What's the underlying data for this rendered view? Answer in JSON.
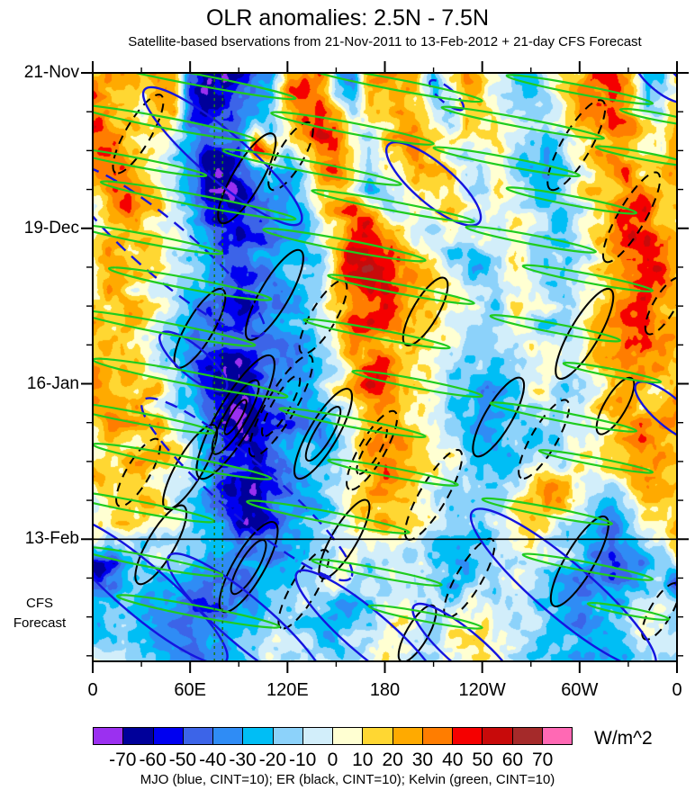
{
  "header": {
    "title": "OLR anomalies: 2.5N - 7.5N",
    "subtitle": "Satellite-based bservations from 21-Nov-2011 to 13-Feb-2012 + 21-day CFS Forecast"
  },
  "y_axis": {
    "major": [
      {
        "day": 0,
        "label": "21-Nov"
      },
      {
        "day": 28,
        "label": "19-Dec"
      },
      {
        "day": 56,
        "label": "16-Jan"
      },
      {
        "day": 84,
        "label": "13-Feb"
      }
    ],
    "minor_step_days": 7,
    "cfs_line1": "CFS",
    "cfs_line2": "Forecast"
  },
  "x_axis": {
    "major": [
      {
        "lon": 0,
        "label": "0"
      },
      {
        "lon": 60,
        "label": "60E"
      },
      {
        "lon": 120,
        "label": "120E"
      },
      {
        "lon": 180,
        "label": "180"
      },
      {
        "lon": 240,
        "label": "120W"
      },
      {
        "lon": 300,
        "label": "60W"
      },
      {
        "lon": 360,
        "label": "0"
      }
    ],
    "minor_step_deg": 30
  },
  "colorbar": {
    "unit": "W/m^2",
    "tick_labels": [
      "-70",
      "-60",
      "-50",
      "-40",
      "-30",
      "-20",
      "-10",
      "0",
      "10",
      "20",
      "30",
      "40",
      "50",
      "60",
      "70"
    ],
    "colors": [
      "#9B30F0",
      "#00009A",
      "#0000F0",
      "#3C64E8",
      "#2F8CF5",
      "#00BEF5",
      "#8CD2FA",
      "#D2EEFA",
      "#FFFFD2",
      "#FFD732",
      "#FFAA00",
      "#FF7D00",
      "#F50000",
      "#C80A0A",
      "#A52A2A",
      "#FF69B4"
    ]
  },
  "legend": {
    "text": "MJO (blue, CINT=10); ER (black, CINT=10); Kelvin (green, CINT=10)"
  },
  "chart_data": {
    "type": "heatmap",
    "title": "OLR anomalies: 2.5N - 7.5N",
    "time_start": "21-Nov-2011",
    "obs_end": "13-Feb-2012",
    "forecast_days": 21,
    "lon_range": [
      0,
      360
    ],
    "day_range": [
      0,
      106
    ],
    "levels_min": -70,
    "levels_step": 10,
    "value_codes": {
      "a": -75,
      "b": -65,
      "c": -55,
      "d": -45,
      "e": -35,
      "f": -25,
      "g": -15,
      "h": -5,
      "i": 5,
      "j": 15,
      "k": 25,
      "l": 35,
      "m": 45,
      "n": 55,
      "o": 65,
      "p": 75
    },
    "grid_lon_step": 10,
    "grid_rows": 31,
    "grid": [
      "klkjkjdbabefkmlfekljjfjkihfgijklmkfgj",
      "lkjikjcabcdekmkgfjkkjgikjhgfhjklmkggj",
      "mkjhjkdbcdefjmmkgikljhhjihgfgiklmkhgk",
      "mlkjjifddejfilmlhhjkkihjjihgghjklljhk",
      "lmkjihfccdmkgjlmjgijkjihijhgfhiklkjik",
      "klljihebbcdffhkljfhikkjhhigffgijkljjk",
      "jklkjgdaabdeegjkifgijjihgihgfgijklkkj",
      "iklkjhfcbcdefgikmlhgijjihhihgghjklmkj",
      "jjkjihgedcdeffhjmmkjhgihhgihhgijkmmkj",
      "kljjihgfedeeffgjnnmkigfghhihgghiklmlk",
      "jkkjihgfeceefggkmnnlkjhgfgihgfhjklmmk",
      "ikjjihfedbdefghlmnmlkjihggihgghiklmlj",
      "jjkjhgfdcbceefgjlmmlkjihhgihhgijklmkj",
      "kjjihgedccdeffgilmlkjjihghihggijklljk",
      "jkjihgfedddeefghklkjjihgghhihghjklmkj",
      "kjjihgecbbceefghjmmkjihggfghhgijkllkj",
      "lkkjjhfcabcdffgijmlkjhgfefghigghjkkjk",
      "kkjjihgdbabdeffhikljihgfeefghhgijkjjl",
      "jkkjjigecbacdeeghjkkjhgfefgfghhijkkkl",
      "ikjjkjhfdcbdeffgiklkjihgffgfghhijklkk",
      "jjkkjigecccdefghjklkjjihgfghhgihjklkj",
      "jkjjihgfdbaceefgijkkjihhgghikjhgfjkkj",
      "ijjkjhgedbbdeffhjjkjihgghhikkjhgfhjkj",
      "jijjihgfecbceefgijjjihggfhjkjhgedfijk",
      "hhighhgffddeffghhiihhggfghijhgfddfhij",
      "bcefggfeeffefghhighhigffghhihgfedeegh",
      "defgffeddeeffghighhhggffhhihgfeddefgb",
      "efgffeddeffgghfefghhgghihgghgfeefgghg",
      "fggfeedefgghhgffghhiihhijihhgfeefghhg",
      "gghgfeeffgghhhgfghiihhiijihgffeefghhh",
      "hhhgffeffgghhhhgghiihhiijihggfeffghhh"
    ],
    "noise": {
      "amp1": 11,
      "sx1": 13,
      "sy1": 3.0,
      "amp2": 8,
      "sx2": 4.5,
      "sy2": 1.4
    },
    "contours": {
      "kelvin": {
        "color": "#1FCC1F",
        "slope_deg_per_day": 18,
        "stroke": 2.2,
        "items": [
          [
            60,
            1,
            130,
            6
          ],
          [
            185,
            2,
            110,
            6
          ],
          [
            300,
            3,
            90,
            5
          ],
          [
            45,
            9,
            110,
            6
          ],
          [
            160,
            10,
            100,
            6
          ],
          [
            265,
            9,
            100,
            5
          ],
          [
            350,
            8,
            50,
            4
          ],
          [
            25,
            16,
            90,
            5
          ],
          [
            135,
            17,
            110,
            6
          ],
          [
            255,
            16,
            90,
            5
          ],
          [
            340,
            15,
            60,
            4
          ],
          [
            65,
            23,
            120,
            6
          ],
          [
            185,
            24,
            100,
            5
          ],
          [
            295,
            23,
            80,
            5
          ],
          [
            35,
            30,
            90,
            5
          ],
          [
            155,
            31,
            100,
            6
          ],
          [
            270,
            30,
            80,
            5
          ],
          [
            60,
            38,
            100,
            6
          ],
          [
            190,
            39,
            90,
            5
          ],
          [
            305,
            37,
            80,
            5
          ],
          [
            45,
            46,
            110,
            6
          ],
          [
            175,
            47,
            90,
            5
          ],
          [
            285,
            46,
            80,
            5
          ],
          [
            60,
            55,
            120,
            7
          ],
          [
            200,
            56,
            80,
            5
          ],
          [
            320,
            54,
            60,
            4
          ],
          [
            25,
            62,
            100,
            6
          ],
          [
            160,
            63,
            90,
            5
          ],
          [
            290,
            62,
            90,
            5
          ],
          [
            55,
            70,
            110,
            6
          ],
          [
            185,
            72,
            80,
            5
          ],
          [
            310,
            70,
            70,
            4
          ],
          [
            25,
            78,
            100,
            6
          ],
          [
            145,
            80,
            100,
            6
          ],
          [
            280,
            79,
            80,
            5
          ],
          [
            35,
            88,
            90,
            6
          ],
          [
            175,
            90,
            80,
            5
          ],
          [
            305,
            89,
            80,
            5
          ],
          [
            65,
            97,
            100,
            6
          ],
          [
            205,
            98,
            70,
            5
          ],
          [
            330,
            97,
            50,
            4
          ]
        ]
      },
      "er": {
        "color": "#000000",
        "slope_deg_per_day": -2,
        "stroke": 2.0,
        "items": [
          [
            95,
            19,
            16,
            16,
            "s",
            1
          ],
          [
            122,
            15,
            12,
            14,
            "d",
            1
          ],
          [
            28,
            11,
            14,
            14,
            "d",
            1
          ],
          [
            298,
            13,
            16,
            16,
            "d",
            1
          ],
          [
            332,
            26,
            16,
            15,
            "d",
            1
          ],
          [
            112,
            40,
            16,
            16,
            "s",
            1
          ],
          [
            142,
            44,
            13,
            14,
            "d",
            1
          ],
          [
            66,
            46,
            14,
            15,
            "s",
            1
          ],
          [
            205,
            43,
            12,
            14,
            "s",
            1
          ],
          [
            303,
            47,
            16,
            16,
            "s",
            1
          ],
          [
            352,
            42,
            10,
            12,
            "d",
            1
          ],
          [
            88,
            62,
            22,
            20,
            "s",
            3
          ],
          [
            116,
            60,
            18,
            16,
            "d",
            2
          ],
          [
            142,
            65,
            16,
            16,
            "s",
            2
          ],
          [
            60,
            71,
            15,
            15,
            "s",
            1
          ],
          [
            172,
            68,
            14,
            14,
            "d",
            2
          ],
          [
            210,
            76,
            16,
            15,
            "d",
            1
          ],
          [
            250,
            62,
            14,
            15,
            "s",
            1
          ],
          [
            278,
            66,
            14,
            14,
            "d",
            1
          ],
          [
            322,
            60,
            10,
            12,
            "s",
            1
          ],
          [
            28,
            72,
            12,
            13,
            "d",
            1
          ],
          [
            155,
            84,
            14,
            14,
            "s",
            1
          ],
          [
            42,
            85,
            14,
            15,
            "s",
            1
          ],
          [
            96,
            89,
            16,
            17,
            "s",
            2
          ],
          [
            130,
            93,
            14,
            14,
            "d",
            1
          ],
          [
            232,
            91,
            14,
            14,
            "d",
            1
          ],
          [
            300,
            88,
            16,
            16,
            "s",
            1
          ],
          [
            200,
            101,
            10,
            12,
            "s",
            1
          ],
          [
            350,
            97,
            10,
            12,
            "d",
            1
          ]
        ]
      },
      "mjo": {
        "color": "#1414E0",
        "slope_deg_per_day": 4,
        "stroke": 2.4,
        "items": [
          [
            80,
            15,
            24,
            26,
            "s"
          ],
          [
            45,
            32,
            30,
            30,
            "d"
          ],
          [
            210,
            20,
            14,
            22,
            "s"
          ],
          [
            350,
            1,
            8,
            14,
            "s"
          ],
          [
            218,
            4,
            5,
            8,
            "d"
          ],
          [
            62,
            52,
            10,
            16,
            "s"
          ],
          [
            95,
            75,
            32,
            30,
            "d"
          ],
          [
            355,
            61,
            10,
            16,
            "s"
          ],
          [
            30,
            93,
            26,
            28,
            "s"
          ],
          [
            95,
            99,
            24,
            26,
            "s"
          ],
          [
            170,
            101,
            22,
            24,
            "s"
          ],
          [
            290,
            93,
            28,
            30,
            "s"
          ],
          [
            230,
            104,
            16,
            20,
            "s"
          ]
        ]
      }
    },
    "markers": {
      "forecast_start_day": 84,
      "vertical_lines_lon": [
        75,
        80
      ],
      "vertical_line_color": "#1E7A1E"
    }
  }
}
